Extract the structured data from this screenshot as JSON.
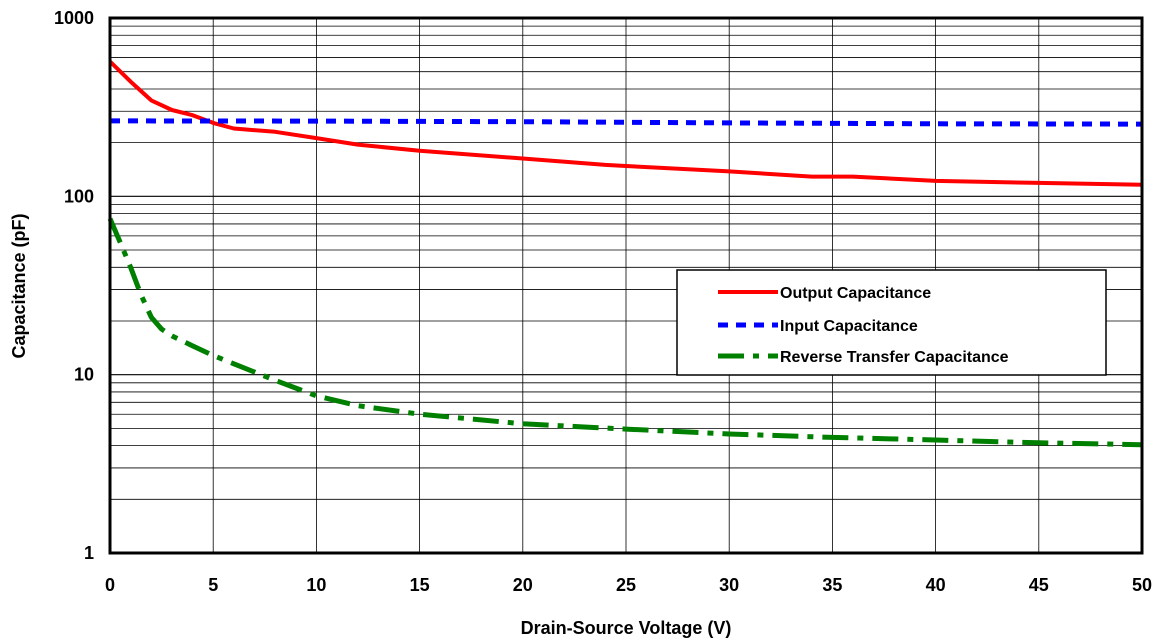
{
  "chart_data": {
    "type": "line",
    "title": "",
    "xlabel": "Drain-Source Voltage (V)",
    "ylabel": "Capacitance (pF)",
    "xlim": [
      0,
      50
    ],
    "ylim": [
      1,
      1000
    ],
    "yscale": "log",
    "grid": true,
    "legend_position": "right",
    "x_ticks": [
      0,
      5,
      10,
      15,
      20,
      25,
      30,
      35,
      40,
      45,
      50
    ],
    "x_tick_labels": [
      "0",
      "5",
      "10",
      "15",
      "20",
      "25",
      "30",
      "35",
      "40",
      "45",
      "50"
    ],
    "y_ticks": [
      1,
      10,
      100,
      1000
    ],
    "y_tick_labels": [
      "1",
      "10",
      "100",
      "1000"
    ],
    "series": [
      {
        "name": "Output Capacitance",
        "color": "#ff0000",
        "style": "solid",
        "points": [
          [
            0,
            570
          ],
          [
            1,
            440
          ],
          [
            2,
            345
          ],
          [
            3,
            305
          ],
          [
            4,
            285
          ],
          [
            5,
            258
          ],
          [
            6,
            240
          ],
          [
            8,
            230
          ],
          [
            10,
            212
          ],
          [
            12,
            195
          ],
          [
            15,
            180
          ],
          [
            20,
            163
          ],
          [
            24,
            150
          ],
          [
            25,
            148
          ],
          [
            30,
            138
          ],
          [
            34,
            129
          ],
          [
            36,
            129
          ],
          [
            40,
            122
          ],
          [
            45,
            119
          ],
          [
            50,
            116
          ]
        ]
      },
      {
        "name": "Input Capacitance",
        "color": "#0000ff",
        "style": "dotted",
        "points": [
          [
            0,
            265
          ],
          [
            10,
            264
          ],
          [
            20,
            262
          ],
          [
            30,
            258
          ],
          [
            40,
            255
          ],
          [
            50,
            254
          ]
        ]
      },
      {
        "name": "Reverse Transfer Capacitance",
        "color": "#008000",
        "style": "dashed",
        "points": [
          [
            0,
            75
          ],
          [
            0.5,
            55
          ],
          [
            1,
            40
          ],
          [
            1.5,
            28
          ],
          [
            2,
            21
          ],
          [
            2.5,
            18
          ],
          [
            3,
            16.5
          ],
          [
            4,
            14.5
          ],
          [
            5,
            12.8
          ],
          [
            6,
            11.5
          ],
          [
            8,
            9.3
          ],
          [
            10,
            7.6
          ],
          [
            12,
            6.7
          ],
          [
            15,
            6.0
          ],
          [
            20,
            5.3
          ],
          [
            25,
            4.95
          ],
          [
            30,
            4.65
          ],
          [
            35,
            4.45
          ],
          [
            40,
            4.3
          ],
          [
            45,
            4.15
          ],
          [
            50,
            4.05
          ]
        ]
      }
    ]
  }
}
